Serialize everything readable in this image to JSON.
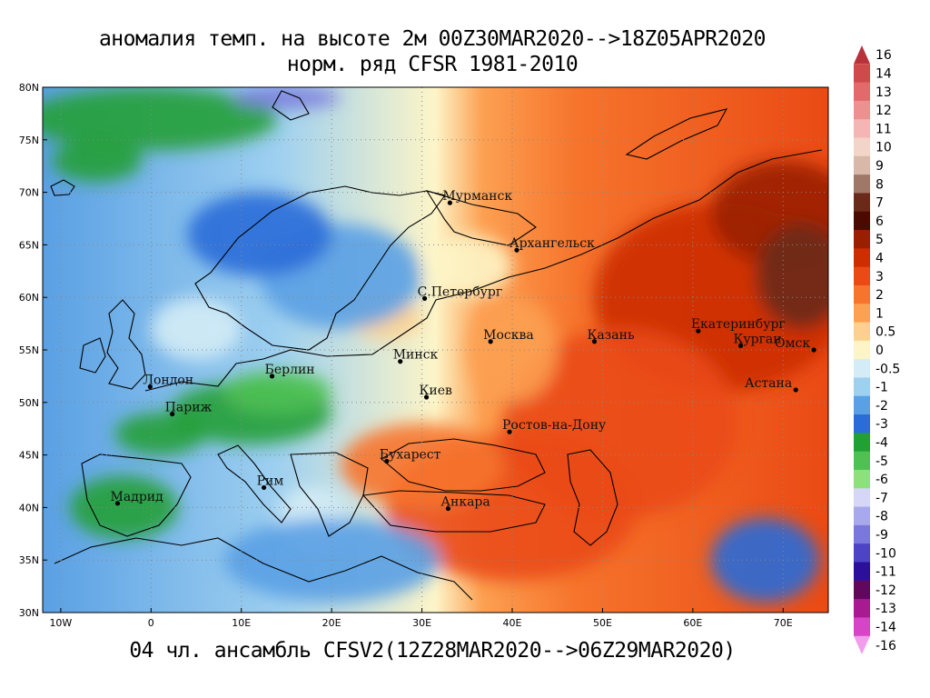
{
  "title_line1": "аномалия темп. на высоте 2м 00Z30MAR2020-->18Z05APR2020",
  "title_line2": "норм. ряд CFSR 1981-2010",
  "footer": "04 чл. ансамбль CFSV2(12Z28MAR2020-->06Z29MAR2020)",
  "lat_labels": [
    "80N",
    "75N",
    "70N",
    "65N",
    "60N",
    "55N",
    "50N",
    "45N",
    "40N",
    "35N",
    "30N"
  ],
  "lon_labels": [
    "10W",
    "0",
    "10E",
    "20E",
    "30E",
    "40E",
    "50E",
    "60E",
    "70E"
  ],
  "cities": [
    {
      "name": "Мурманск",
      "lon": 33.1,
      "lat": 69.0
    },
    {
      "name": "Архангельск",
      "lon": 40.5,
      "lat": 64.5
    },
    {
      "name": "С.Петербург",
      "lon": 30.3,
      "lat": 59.9
    },
    {
      "name": "Москва",
      "lon": 37.6,
      "lat": 55.8
    },
    {
      "name": "Казань",
      "lon": 49.1,
      "lat": 55.8
    },
    {
      "name": "Екатеринбург",
      "lon": 60.6,
      "lat": 56.8
    },
    {
      "name": "Курган",
      "lon": 65.3,
      "lat": 55.4
    },
    {
      "name": "Омск",
      "lon": 73.4,
      "lat": 55.0
    },
    {
      "name": "Астана",
      "lon": 71.4,
      "lat": 51.2
    },
    {
      "name": "Минск",
      "lon": 27.6,
      "lat": 53.9
    },
    {
      "name": "Киев",
      "lon": 30.5,
      "lat": 50.5
    },
    {
      "name": "Берлин",
      "lon": 13.4,
      "lat": 52.5
    },
    {
      "name": "Лондон",
      "lon": -0.1,
      "lat": 51.5
    },
    {
      "name": "Париж",
      "lon": 2.35,
      "lat": 48.9
    },
    {
      "name": "Мадрид",
      "lon": -3.7,
      "lat": 40.4
    },
    {
      "name": "Рим",
      "lon": 12.5,
      "lat": 41.9
    },
    {
      "name": "Бухарест",
      "lon": 26.1,
      "lat": 44.4
    },
    {
      "name": "Ростов-на-Дону",
      "lon": 39.7,
      "lat": 47.2
    },
    {
      "name": "Анкара",
      "lon": 32.9,
      "lat": 39.9
    }
  ],
  "colorbar": [
    {
      "label": "16",
      "color": "#b8323a"
    },
    {
      "label": "14",
      "color": "#cf4a4a"
    },
    {
      "label": "13",
      "color": "#e26a6a"
    },
    {
      "label": "12",
      "color": "#ec9090"
    },
    {
      "label": "11",
      "color": "#f4b5b5"
    },
    {
      "label": "10",
      "color": "#f3d4c8"
    },
    {
      "label": "9",
      "color": "#d8b8a8"
    },
    {
      "label": "8",
      "color": "#a07868"
    },
    {
      "label": "7",
      "color": "#6a2a1a"
    },
    {
      "label": "6",
      "color": "#4a0a00"
    },
    {
      "label": "5",
      "color": "#9a1e00"
    },
    {
      "label": "4",
      "color": "#cc2e00"
    },
    {
      "label": "3",
      "color": "#ea4a14"
    },
    {
      "label": "2",
      "color": "#f6742c"
    },
    {
      "label": "1",
      "color": "#fca052"
    },
    {
      "label": "0.5",
      "color": "#fdd090"
    },
    {
      "label": "0",
      "color": "#fdf5c8"
    },
    {
      "label": "-0.5",
      "color": "#d4ecf6"
    },
    {
      "label": "-1",
      "color": "#9ed0f0"
    },
    {
      "label": "-2",
      "color": "#5aa0e4"
    },
    {
      "label": "-3",
      "color": "#2a6cd8"
    },
    {
      "label": "-4",
      "color": "#21a036"
    },
    {
      "label": "-5",
      "color": "#4ec152"
    },
    {
      "label": "-6",
      "color": "#8ee07a"
    },
    {
      "label": "-7",
      "color": "#d6d6f6"
    },
    {
      "label": "-8",
      "color": "#a8a8ec"
    },
    {
      "label": "-9",
      "color": "#7a78dc"
    },
    {
      "label": "-10",
      "color": "#4c44c4"
    },
    {
      "label": "-11",
      "color": "#2c109c"
    },
    {
      "label": "-12",
      "color": "#62085c"
    },
    {
      "label": "-13",
      "color": "#a81a92"
    },
    {
      "label": "-14",
      "color": "#d644c8"
    },
    {
      "label": "-16",
      "color": "#f29cec"
    }
  ],
  "anomaly_patches": [
    {
      "lon": 63,
      "lat": 60,
      "rx": 14,
      "ry": 9,
      "color": "#cc2e00"
    },
    {
      "lon": 52,
      "lat": 48,
      "rx": 13,
      "ry": 9,
      "color": "#ea4a14"
    },
    {
      "lon": 40,
      "lat": 40,
      "rx": 14,
      "ry": 7,
      "color": "#ea4a14"
    },
    {
      "lon": 70,
      "lat": 68,
      "rx": 8,
      "ry": 5,
      "color": "#9a1e00"
    },
    {
      "lon": 72,
      "lat": 62,
      "rx": 5,
      "ry": 5,
      "color": "#6a2a1a"
    },
    {
      "lon": 30,
      "lat": 44,
      "rx": 9,
      "ry": 4,
      "color": "#f6742c"
    },
    {
      "lon": 40,
      "lat": 55,
      "rx": 5,
      "ry": 5,
      "color": "#fca052"
    },
    {
      "lon": 35,
      "lat": 63,
      "rx": 5,
      "ry": 3,
      "color": "#fdf5c8"
    },
    {
      "lon": 26,
      "lat": 58,
      "rx": 4,
      "ry": 2,
      "color": "#fdd090"
    },
    {
      "lon": 21,
      "lat": 62,
      "rx": 9,
      "ry": 5,
      "color": "#5aa0e4"
    },
    {
      "lon": 12,
      "lat": 66,
      "rx": 8,
      "ry": 4,
      "color": "#2a6cd8"
    },
    {
      "lon": 11,
      "lat": 49,
      "rx": 9,
      "ry": 3,
      "color": "#21a036"
    },
    {
      "lon": 14,
      "lat": 51,
      "rx": 6,
      "ry": 2,
      "color": "#4ec152"
    },
    {
      "lon": -3,
      "lat": 40,
      "rx": 6,
      "ry": 3,
      "color": "#21a036"
    },
    {
      "lon": 1,
      "lat": 47,
      "rx": 5,
      "ry": 2,
      "color": "#21a036"
    },
    {
      "lon": 0,
      "lat": 77,
      "rx": 14,
      "ry": 3,
      "color": "#21a036"
    },
    {
      "lon": -6,
      "lat": 73,
      "rx": 5,
      "ry": 2,
      "color": "#21a036"
    },
    {
      "lon": 15,
      "lat": 79,
      "rx": 6,
      "ry": 1,
      "color": "#7a78dc"
    },
    {
      "lon": 5,
      "lat": 57,
      "rx": 5,
      "ry": 3,
      "color": "#d4ecf6"
    },
    {
      "lon": 18,
      "lat": 39,
      "rx": 4,
      "ry": 3,
      "color": "#d4ecf6"
    },
    {
      "lon": 68,
      "lat": 35,
      "rx": 6,
      "ry": 4,
      "color": "#2a6cd8"
    },
    {
      "lon": 20,
      "lat": 35,
      "rx": 12,
      "ry": 4,
      "color": "#5aa0e4"
    }
  ]
}
